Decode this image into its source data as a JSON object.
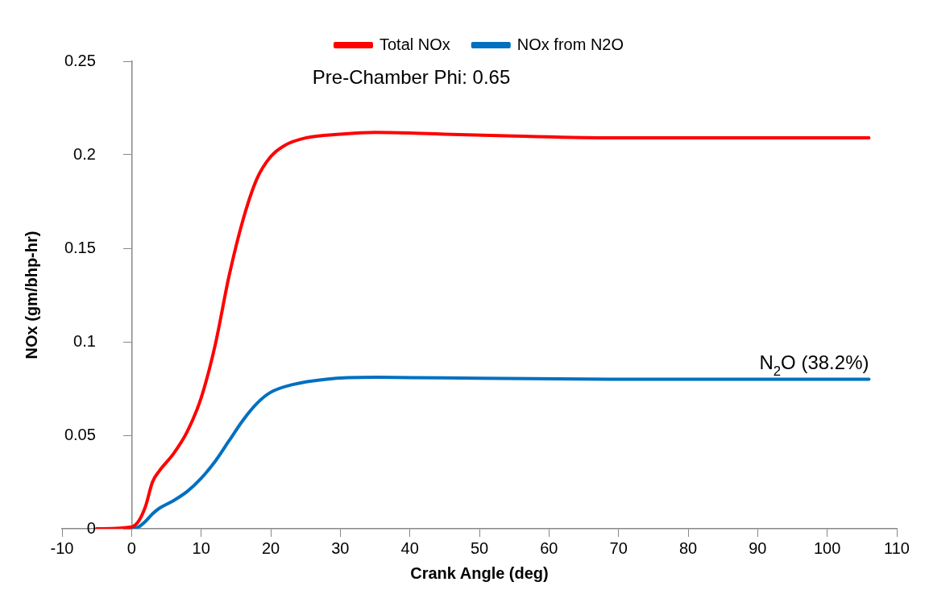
{
  "chart_data": {
    "type": "line",
    "xlabel": "Crank Angle (deg)",
    "ylabel": "NOx (gm/bhp-hr)",
    "xlim": [
      -10,
      110
    ],
    "xticks": [
      -10,
      0,
      10,
      20,
      30,
      40,
      50,
      60,
      70,
      80,
      90,
      100,
      110
    ],
    "ylim": [
      0,
      0.25
    ],
    "yticks": [
      0,
      0.05,
      0.1,
      0.15,
      0.2,
      0.25
    ],
    "grid": false,
    "legend": "top",
    "marker": "none",
    "line_style": "solid",
    "series": [
      {
        "name": "Total NOx",
        "color": "#ff0000",
        "x": [
          -5,
          0,
          1,
          2,
          3,
          4,
          6,
          8,
          10,
          12,
          14,
          16,
          18,
          20,
          22,
          25,
          30,
          35,
          45,
          55,
          70,
          106
        ],
        "values": [
          0,
          0.001,
          0.004,
          0.012,
          0.025,
          0.031,
          0.04,
          0.052,
          0.07,
          0.098,
          0.135,
          0.165,
          0.187,
          0.199,
          0.205,
          0.209,
          0.211,
          0.212,
          0.211,
          0.21,
          0.209,
          0.209
        ]
      },
      {
        "name": "NOx from N2O",
        "color": "#0070c0",
        "x": [
          -5,
          0,
          1,
          2,
          3,
          4,
          6,
          8,
          10,
          12,
          14,
          16,
          18,
          20,
          23,
          28,
          35,
          50,
          70,
          106
        ],
        "values": [
          0,
          0,
          0.001,
          0.004,
          0.008,
          0.011,
          0.015,
          0.02,
          0.027,
          0.036,
          0.047,
          0.058,
          0.067,
          0.073,
          0.077,
          0.08,
          0.081,
          0.0805,
          0.08,
          0.08
        ]
      }
    ],
    "annotations": [
      "Pre-Chamber Phi: 0.65",
      {
        "text": "N$_{2}$O (38.2%)",
        "x": 106,
        "y": 0.08
      }
    ]
  }
}
